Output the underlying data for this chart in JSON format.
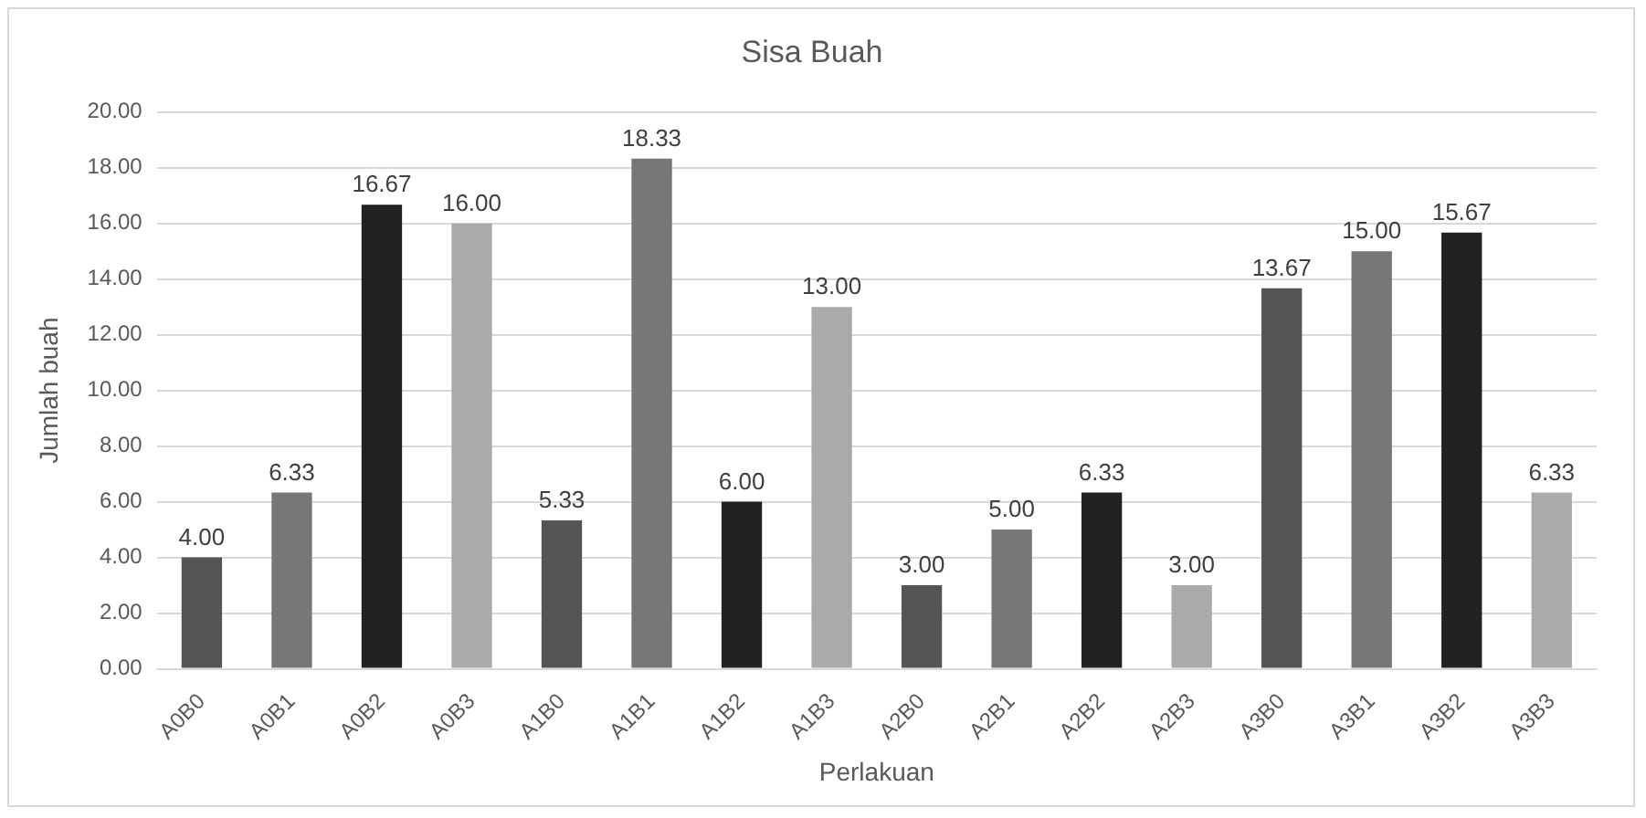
{
  "chart_data": {
    "type": "bar",
    "title": "Sisa Buah",
    "xlabel": "Perlakuan",
    "ylabel": "Jumlah buah",
    "categories": [
      "A0B0",
      "A0B1",
      "A0B2",
      "A0B3",
      "A1B0",
      "A1B1",
      "A1B2",
      "A1B3",
      "A2B0",
      "A2B1",
      "A2B2",
      "A2B3",
      "A3B0",
      "A3B1",
      "A3B2",
      "A3B3"
    ],
    "values": [
      4.0,
      6.33,
      16.67,
      16.0,
      5.33,
      18.33,
      6.0,
      13.0,
      3.0,
      5.0,
      6.33,
      3.0,
      13.67,
      15.0,
      15.67,
      6.33
    ],
    "value_labels": [
      "4.00",
      "6.33",
      "16.67",
      "16.00",
      "5.33",
      "18.33",
      "6.00",
      "13.00",
      "3.00",
      "5.00",
      "6.33",
      "3.00",
      "13.67",
      "15.00",
      "15.67",
      "6.33"
    ],
    "colors": [
      "#555555",
      "#777777",
      "#222222",
      "#aaaaaa",
      "#555555",
      "#777777",
      "#222222",
      "#aaaaaa",
      "#555555",
      "#777777",
      "#222222",
      "#aaaaaa",
      "#555555",
      "#777777",
      "#222222",
      "#aaaaaa"
    ],
    "ylim": [
      0,
      20
    ],
    "yticks": [
      {
        "value": 0,
        "label": "0.00"
      },
      {
        "value": 2,
        "label": "2.00"
      },
      {
        "value": 4,
        "label": "4.00"
      },
      {
        "value": 6,
        "label": "6.00"
      },
      {
        "value": 8,
        "label": "8.00"
      },
      {
        "value": 10,
        "label": "10.00"
      },
      {
        "value": 12,
        "label": "12.00"
      },
      {
        "value": 14,
        "label": "14.00"
      },
      {
        "value": 16,
        "label": "16.00"
      },
      {
        "value": 18,
        "label": "18.00"
      },
      {
        "value": 20,
        "label": "20.00"
      }
    ],
    "grid": "y",
    "legend": false
  }
}
